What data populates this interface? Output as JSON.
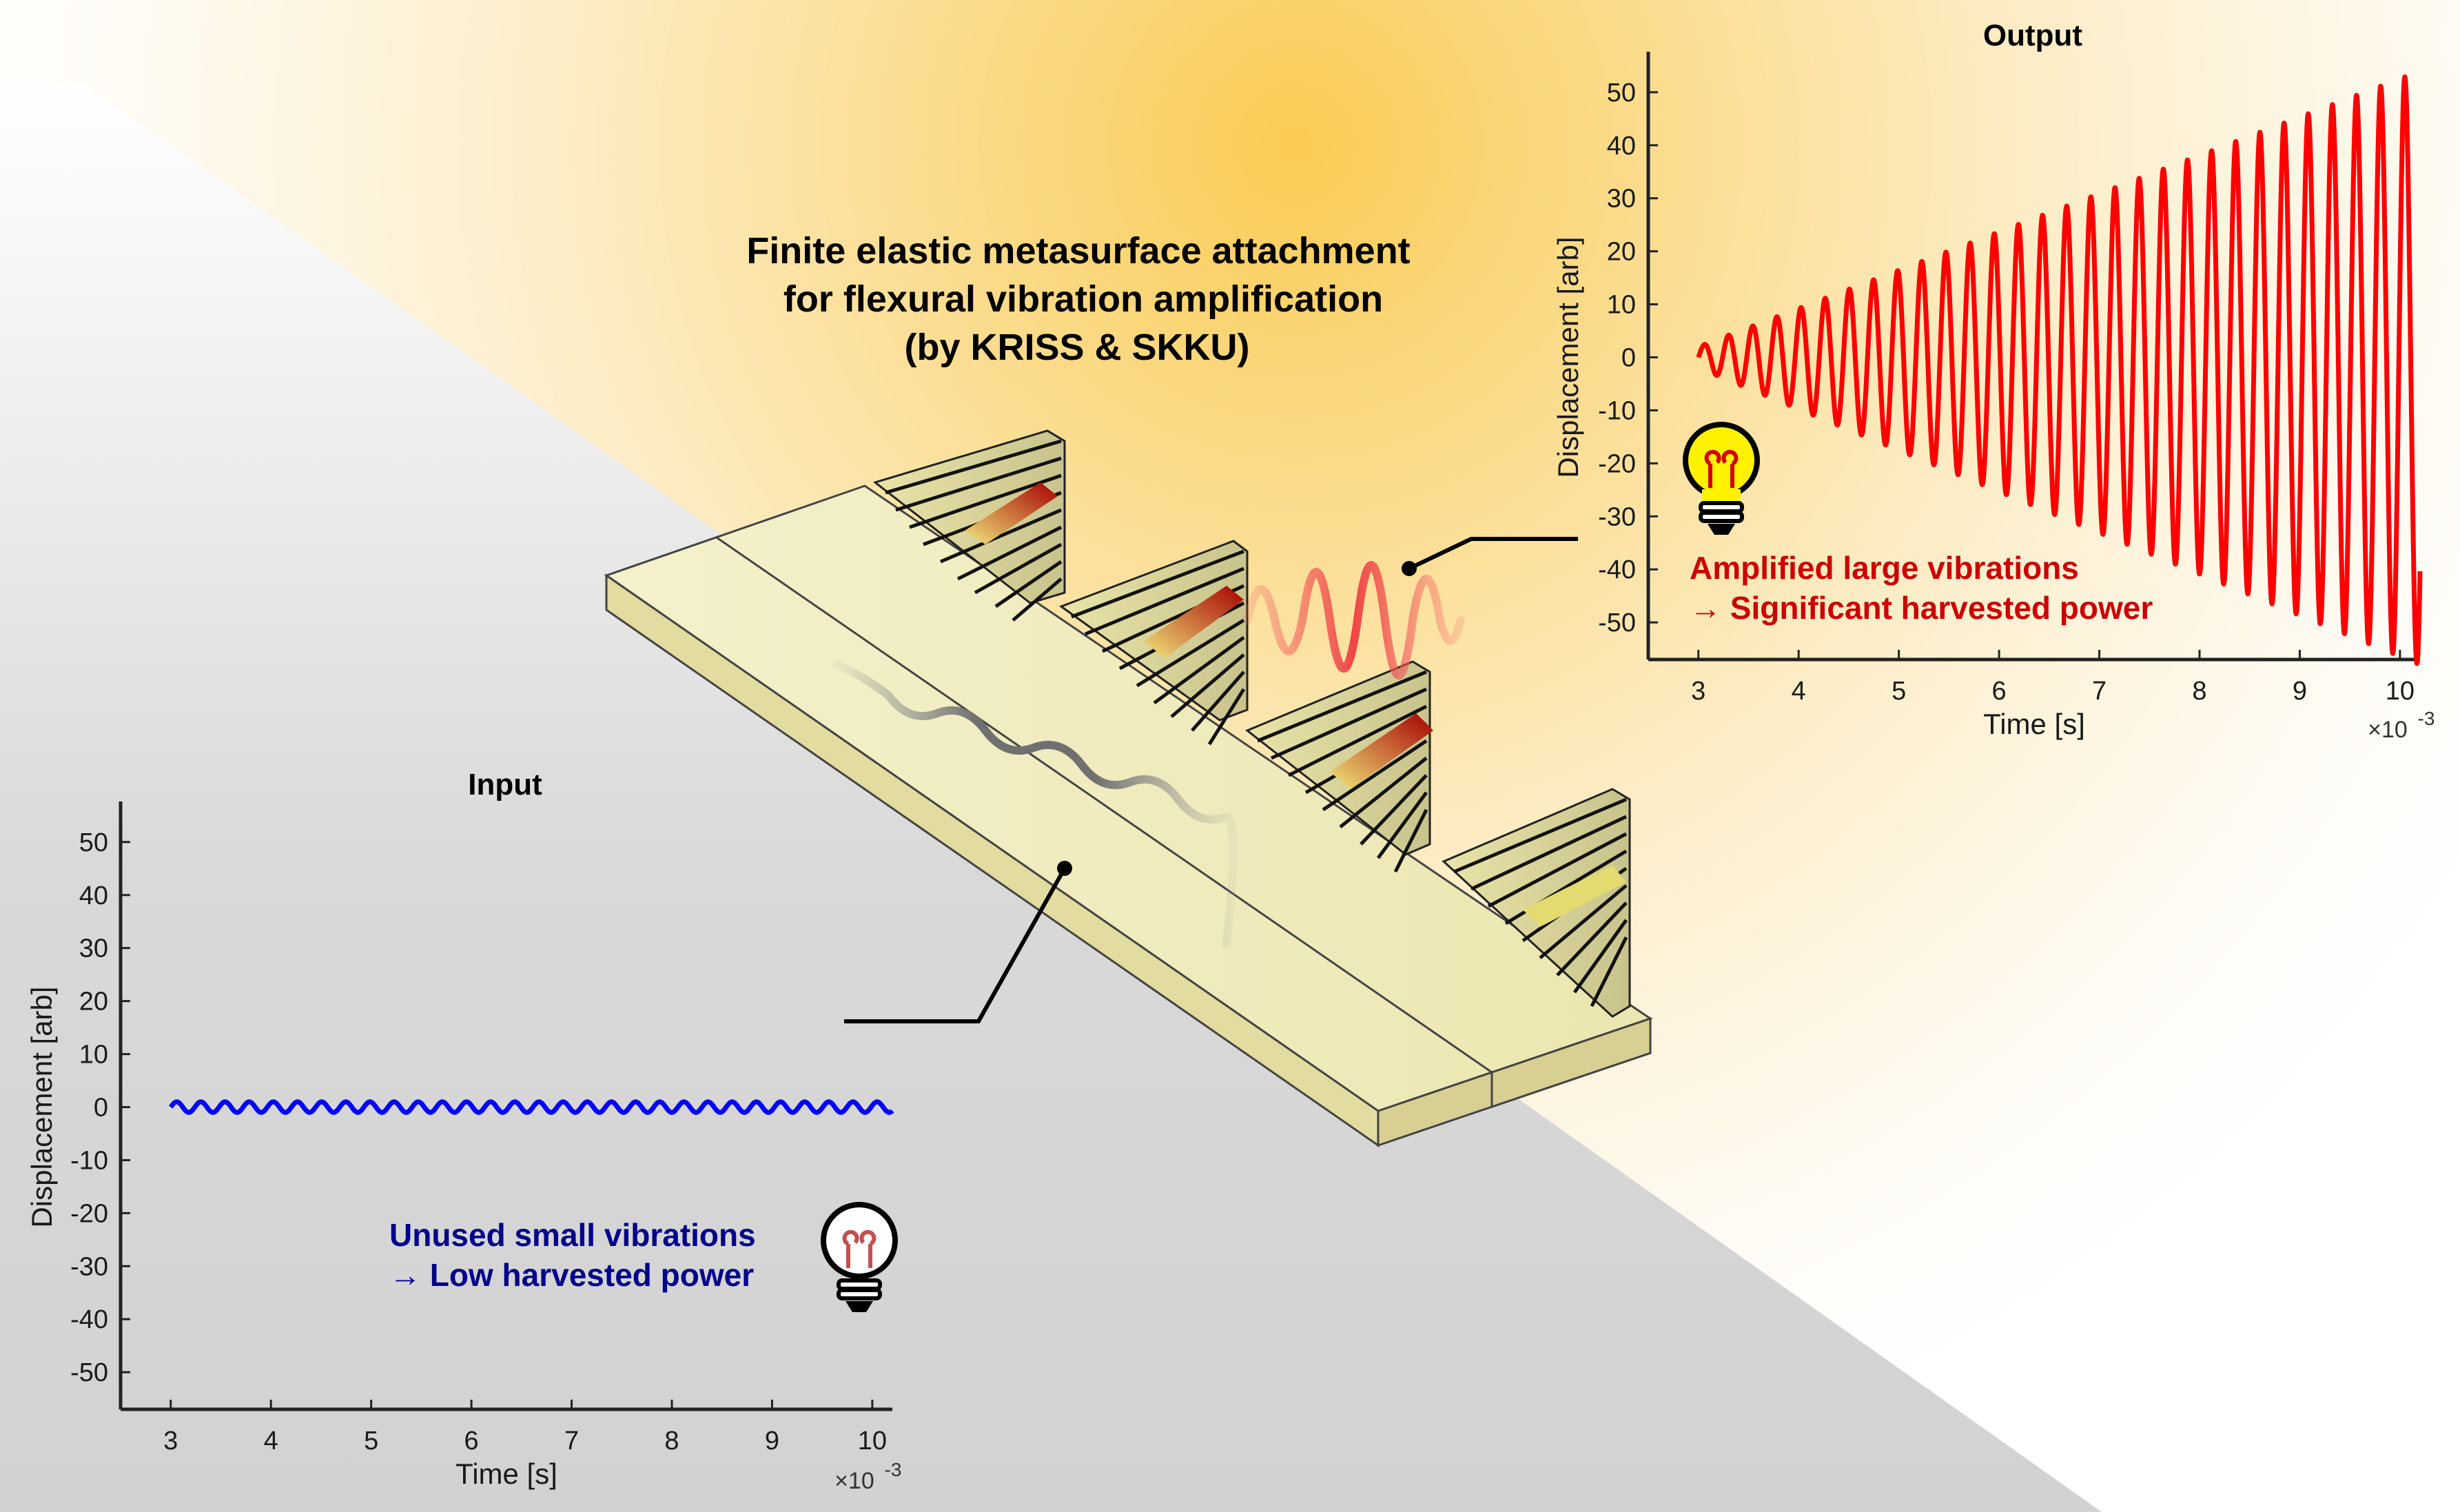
{
  "headline": {
    "lines": [
      "Finite elastic metasurface attachment",
      "for flexural vibration amplification",
      "(by KRISS & SKKU)"
    ]
  },
  "colors": {
    "output_series": "#ff0000",
    "input_series": "#0000ff",
    "output_callout": "#cc0000",
    "input_callout": "#00008b",
    "glow": "#f9c94a",
    "plate": "#f3efc4"
  },
  "icons": [
    "light-bulb-on-icon",
    "light-bulb-off-icon"
  ],
  "callouts": {
    "output": {
      "line1": "Amplified large vibrations",
      "line2": "→ Significant harvested power"
    },
    "input": {
      "line1": "Unused small vibrations",
      "line2": "→ Low harvested power"
    }
  },
  "chart_data": [
    {
      "id": "output",
      "type": "line",
      "title": "Output",
      "xlabel": "Time [s]",
      "ylabel": "Displacement [arb]",
      "x_multiplier": "×10",
      "x_multiplier_exp": "-3",
      "xlim": [
        2.5,
        10.2
      ],
      "ylim": [
        -57,
        57
      ],
      "xticks": [
        "3",
        "4",
        "5",
        "6",
        "7",
        "8",
        "9",
        "10"
      ],
      "yticks": [
        "50",
        "40",
        "30",
        "20",
        "10",
        "0",
        "-10",
        "-20",
        "-30",
        "-40",
        "-50"
      ],
      "grid": false,
      "series": [
        {
          "color": "#ff0000",
          "signal": {
            "x_start": 3.0,
            "x_end": 10.2,
            "frequency_per_unit": 4.15,
            "amplitude_start": 2,
            "amplitude_end": 56,
            "offset_start": 0,
            "offset_end": -2
          }
        }
      ]
    },
    {
      "id": "input",
      "type": "line",
      "title": "Input",
      "xlabel": "Time [s]",
      "ylabel": "Displacement [arb]",
      "x_multiplier": "×10",
      "x_multiplier_exp": "-3",
      "xlim": [
        2.5,
        10.2
      ],
      "ylim": [
        -57,
        57
      ],
      "xticks": [
        "3",
        "4",
        "5",
        "6",
        "7",
        "8",
        "9",
        "10"
      ],
      "yticks": [
        "50",
        "40",
        "30",
        "20",
        "10",
        "0",
        "-10",
        "-20",
        "-30",
        "-40",
        "-50"
      ],
      "grid": false,
      "series": [
        {
          "color": "#0000ff",
          "signal": {
            "x_start": 3.0,
            "x_end": 10.2,
            "frequency_per_unit": 4.15,
            "amplitude_start": 1,
            "amplitude_end": 1,
            "offset_start": 0,
            "offset_end": 0
          }
        }
      ]
    }
  ]
}
